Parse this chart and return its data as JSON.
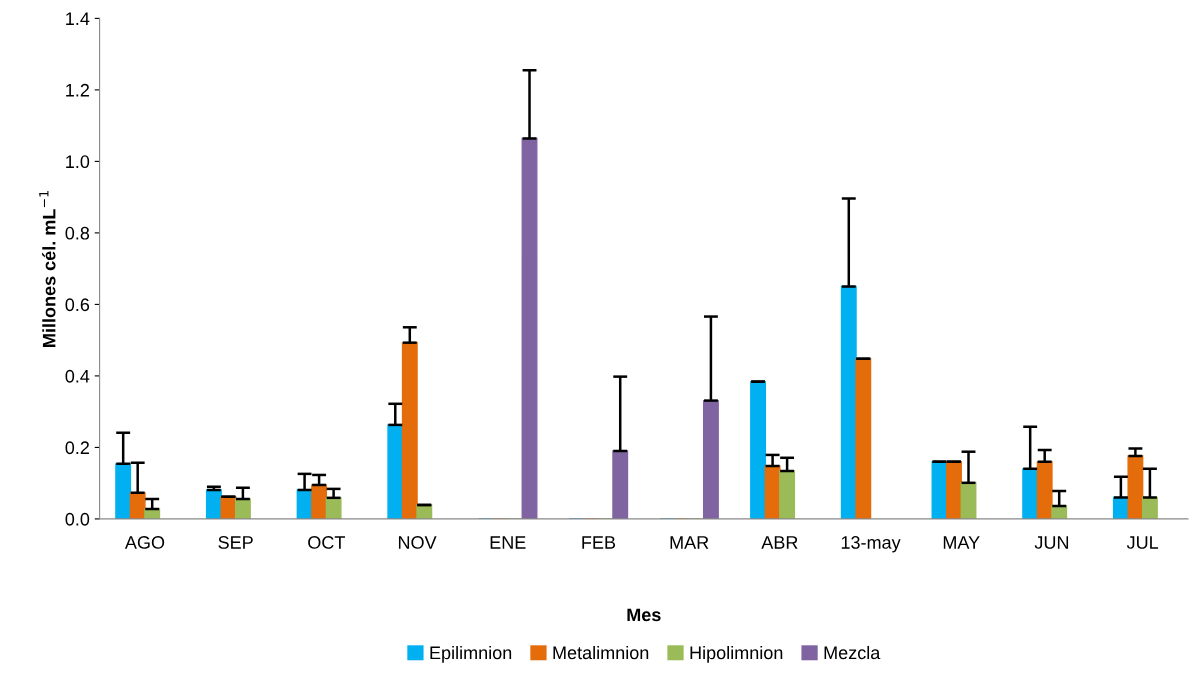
{
  "chart_data": {
    "type": "bar",
    "xlabel": "Mes",
    "ylabel": "Millones cél. mL$^{−1}$",
    "categories": [
      "AGO",
      "SEP",
      "OCT",
      "NOV",
      "ENE",
      "FEB",
      "MAR",
      "ABR",
      "13-may",
      "MAY",
      "JUN",
      "JUL"
    ],
    "series": [
      {
        "name": "Epilimnion",
        "color": "#00b0f0",
        "values": [
          0.154,
          0.081,
          0.081,
          0.263,
          0,
          0,
          0,
          0.384,
          0.65,
          0.16,
          0.14,
          0.06
        ],
        "errors": [
          [
            0.154,
            0.241
          ],
          [
            0.081,
            0.09
          ],
          [
            0.081,
            0.126
          ],
          [
            0.263,
            0.322
          ],
          null,
          null,
          null,
          [
            0.384,
            0.384
          ],
          [
            0.65,
            0.896
          ],
          [
            0.16,
            0.16
          ],
          [
            0.14,
            0.258
          ],
          [
            0.06,
            0.118
          ]
        ]
      },
      {
        "name": "Metalimnion",
        "color": "#e46c0a",
        "values": [
          0.073,
          0.062,
          0.095,
          0.493,
          0,
          0,
          0,
          0.148,
          0.448,
          0.16,
          0.16,
          0.176
        ],
        "errors": [
          [
            0.073,
            0.157
          ],
          [
            0.062,
            0.062
          ],
          [
            0.095,
            0.123
          ],
          [
            0.493,
            0.536
          ],
          null,
          null,
          null,
          [
            0.148,
            0.179
          ],
          [
            0.448,
            0.448
          ],
          [
            0.16,
            0.16
          ],
          [
            0.16,
            0.193
          ],
          [
            0.176,
            0.197
          ]
        ]
      },
      {
        "name": "Hipolimnion",
        "color": "#9bbb59",
        "values": [
          0.028,
          0.056,
          0.059,
          0.039,
          0,
          0,
          0,
          0.134,
          null,
          0.101,
          0.036,
          0.06
        ],
        "errors": [
          [
            0.028,
            0.056
          ],
          [
            0.056,
            0.087
          ],
          [
            0.059,
            0.084
          ],
          [
            0.039,
            0.039
          ],
          null,
          null,
          null,
          [
            0.134,
            0.171
          ],
          null,
          [
            0.101,
            0.188
          ],
          [
            0.036,
            0.078
          ],
          [
            0.06,
            0.14
          ]
        ]
      },
      {
        "name": "Mezcla",
        "color": "#8064a2",
        "values": [
          null,
          null,
          null,
          null,
          1.064,
          0.19,
          0.331,
          null,
          null,
          null,
          null,
          null
        ],
        "errors": [
          null,
          null,
          null,
          null,
          [
            1.064,
            1.255
          ],
          [
            0.19,
            0.398
          ],
          [
            0.331,
            0.566
          ],
          null,
          null,
          null,
          null,
          null
        ]
      }
    ],
    "ylim": [
      0,
      1.4
    ],
    "yticks": [
      {
        "value": 0,
        "label": "0.0"
      },
      {
        "value": 0.2,
        "label": "0.2"
      },
      {
        "value": 0.4,
        "label": "0.4"
      },
      {
        "value": 0.6,
        "label": "0.6"
      },
      {
        "value": 0.8,
        "label": "0.8"
      },
      {
        "value": 1.0,
        "label": "1.0"
      },
      {
        "value": 1.2,
        "label": "1.2"
      },
      {
        "value": 1.4,
        "label": "1.4"
      }
    ],
    "legend": "bottom",
    "grid": false
  }
}
